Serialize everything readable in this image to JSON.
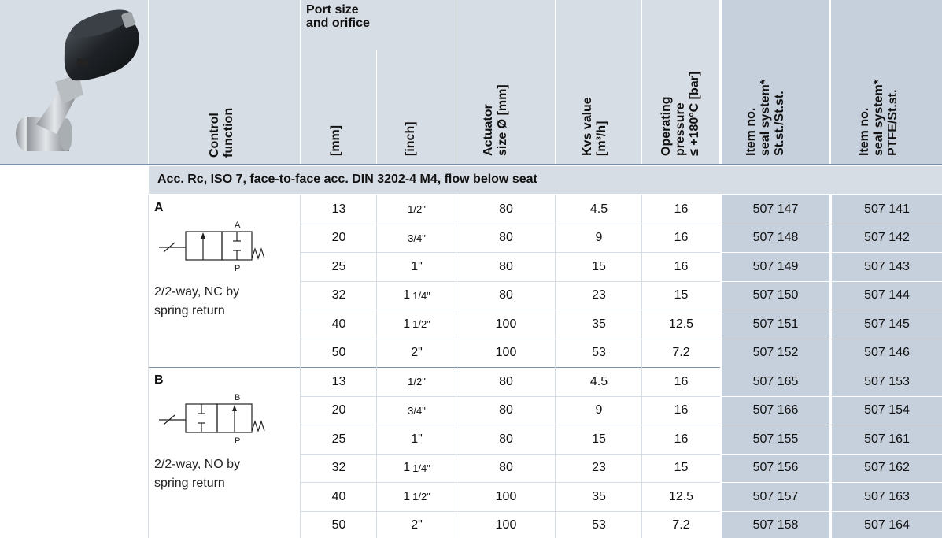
{
  "header": {
    "control_function": [
      "Control",
      "function"
    ],
    "port_size": [
      "Port size",
      "and orifice"
    ],
    "mm": "[mm]",
    "inch": "[inch]",
    "actuator": [
      "Actuator",
      "size  Ø [mm]"
    ],
    "kvs": [
      "Kvs value",
      "[m³/h]"
    ],
    "pressure": [
      "Operating",
      "pressure",
      "≤ +180°C [bar]"
    ],
    "item_stst": [
      "Item no.",
      "seal system*",
      "St.st./St.st."
    ],
    "item_ptfe": [
      "Item no.",
      "seal system*",
      "PTFE/St.st."
    ]
  },
  "section_title": "Acc. Rc, ISO 7, face-to-face acc. DIN 3202-4 M4, flow below seat",
  "groups": [
    {
      "letter": "A",
      "desc": [
        "2/2-way, NC by",
        "spring return"
      ],
      "port_top": "A",
      "port_bottom": "P",
      "rows": [
        {
          "mm": "13",
          "inch": "1/2\"",
          "act": "80",
          "kvs": "4.5",
          "bar": "16",
          "st": "507 147",
          "ptfe": "507 141"
        },
        {
          "mm": "20",
          "inch": "3/4\"",
          "act": "80",
          "kvs": "9",
          "bar": "16",
          "st": "507 148",
          "ptfe": "507 142"
        },
        {
          "mm": "25",
          "inch": "1\"",
          "act": "80",
          "kvs": "15",
          "bar": "16",
          "st": "507 149",
          "ptfe": "507 143"
        },
        {
          "mm": "32",
          "inch_whole": "1",
          "inch_frac": "1/4\"",
          "act": "80",
          "kvs": "23",
          "bar": "15",
          "st": "507 150",
          "ptfe": "507 144"
        },
        {
          "mm": "40",
          "inch_whole": "1",
          "inch_frac": "1/2\"",
          "act": "100",
          "kvs": "35",
          "bar": "12.5",
          "st": "507 151",
          "ptfe": "507 145"
        },
        {
          "mm": "50",
          "inch": "2\"",
          "act": "100",
          "kvs": "53",
          "bar": "7.2",
          "st": "507 152",
          "ptfe": "507 146"
        }
      ]
    },
    {
      "letter": "B",
      "desc": [
        "2/2-way, NO by",
        "spring return"
      ],
      "port_top": "B",
      "port_bottom": "P",
      "rows": [
        {
          "mm": "13",
          "inch": "1/2\"",
          "act": "80",
          "kvs": "4.5",
          "bar": "16",
          "st": "507 165",
          "ptfe": "507 153"
        },
        {
          "mm": "20",
          "inch": "3/4\"",
          "act": "80",
          "kvs": "9",
          "bar": "16",
          "st": "507 166",
          "ptfe": "507 154"
        },
        {
          "mm": "25",
          "inch": "1\"",
          "act": "80",
          "kvs": "15",
          "bar": "16",
          "st": "507 155",
          "ptfe": "507 161"
        },
        {
          "mm": "32",
          "inch_whole": "1",
          "inch_frac": "1/4\"",
          "act": "80",
          "kvs": "23",
          "bar": "15",
          "st": "507 156",
          "ptfe": "507 162"
        },
        {
          "mm": "40",
          "inch_whole": "1",
          "inch_frac": "1/2\"",
          "act": "100",
          "kvs": "35",
          "bar": "12.5",
          "st": "507 157",
          "ptfe": "507 163"
        },
        {
          "mm": "50",
          "inch": "2\"",
          "act": "100",
          "kvs": "53",
          "bar": "7.2",
          "st": "507 158",
          "ptfe": "507 164"
        }
      ]
    }
  ]
}
